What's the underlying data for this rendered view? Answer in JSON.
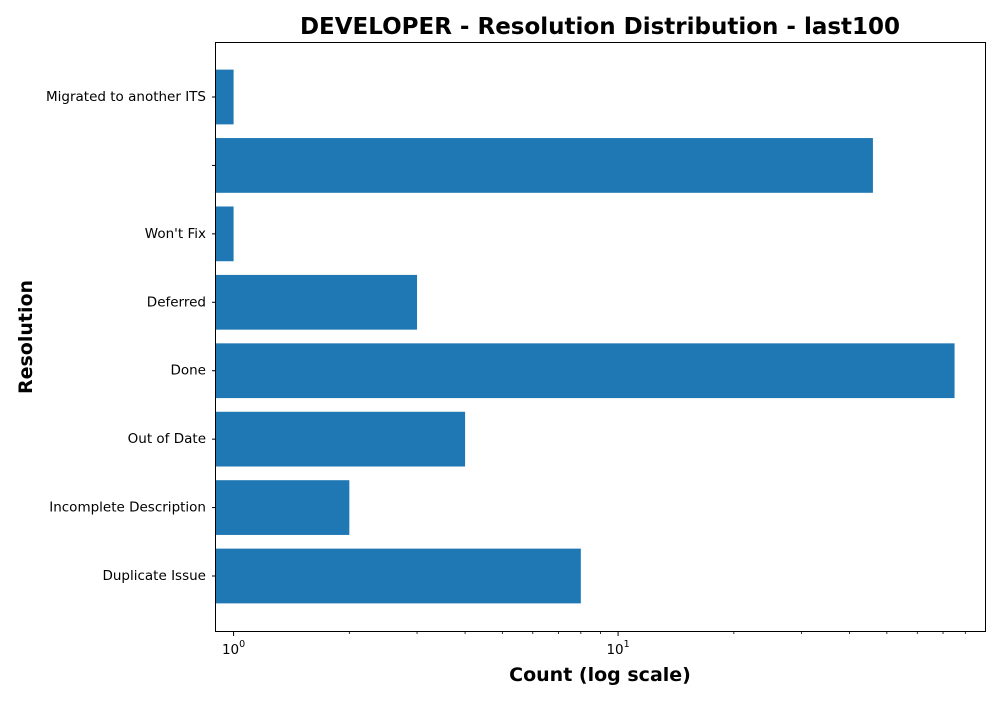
{
  "chart_data": {
    "type": "bar",
    "orientation": "horizontal",
    "title": "DEVELOPER - Resolution Distribution - last100",
    "xlabel": "Count (log scale)",
    "ylabel": "Resolution",
    "x_scale": "log",
    "xlim": [
      0.9,
      90
    ],
    "x_major_ticks": [
      {
        "value": 1,
        "base": "10",
        "exp": "0"
      },
      {
        "value": 10,
        "base": "10",
        "exp": "1"
      }
    ],
    "categories": [
      "Duplicate Issue",
      "Incomplete Description",
      "Out of Date",
      "Done",
      "Deferred",
      "Won't Fix",
      "",
      "Migrated to another ITS"
    ],
    "values": [
      8,
      2,
      4,
      75,
      3,
      1,
      46,
      1
    ],
    "bar_color": "#1f77b4",
    "grid": false,
    "legend": "none"
  }
}
